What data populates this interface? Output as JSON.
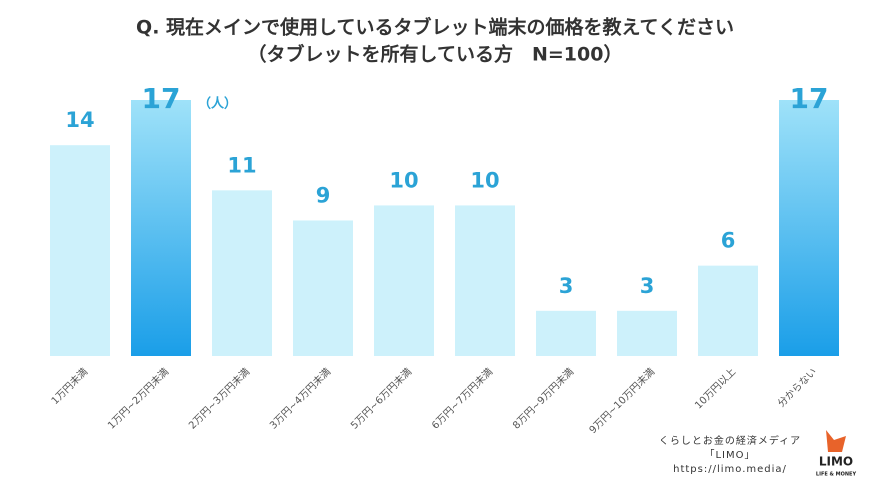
{
  "chart_data": {
    "type": "bar",
    "title": "Q. 現在メインで使用しているタブレット端末の価格を教えてください",
    "subtitle": "（タブレットを所有している方　N=100）",
    "unit": "（人）",
    "categories": [
      "1万円未満",
      "1万円~2万円未満",
      "2万円~3万円未満",
      "3万円~4万円未満",
      "5万円~6万円未満",
      "6万円~7万円未満",
      "8万円~9万円未満",
      "9万円~10万円未満",
      "10万円以上",
      "分からない"
    ],
    "values": [
      14,
      17,
      11,
      9,
      10,
      10,
      3,
      3,
      6,
      17
    ],
    "colors": [
      "#cdf1fb",
      "#29a8ec",
      "#cdf1fb",
      "#cdf1fb",
      "#cdf1fb",
      "#cdf1fb",
      "#cdf1fb",
      "#cdf1fb",
      "#cdf1fb",
      "#29a8ec"
    ],
    "label_color": "#2ba3d6",
    "footer": {
      "tagline": "くらしとお金の経済メディア",
      "brand": "「LIMO」",
      "url": "https://limo.media/",
      "logo": "LIMO",
      "logo_sub": "LIFE & MONEY"
    }
  }
}
